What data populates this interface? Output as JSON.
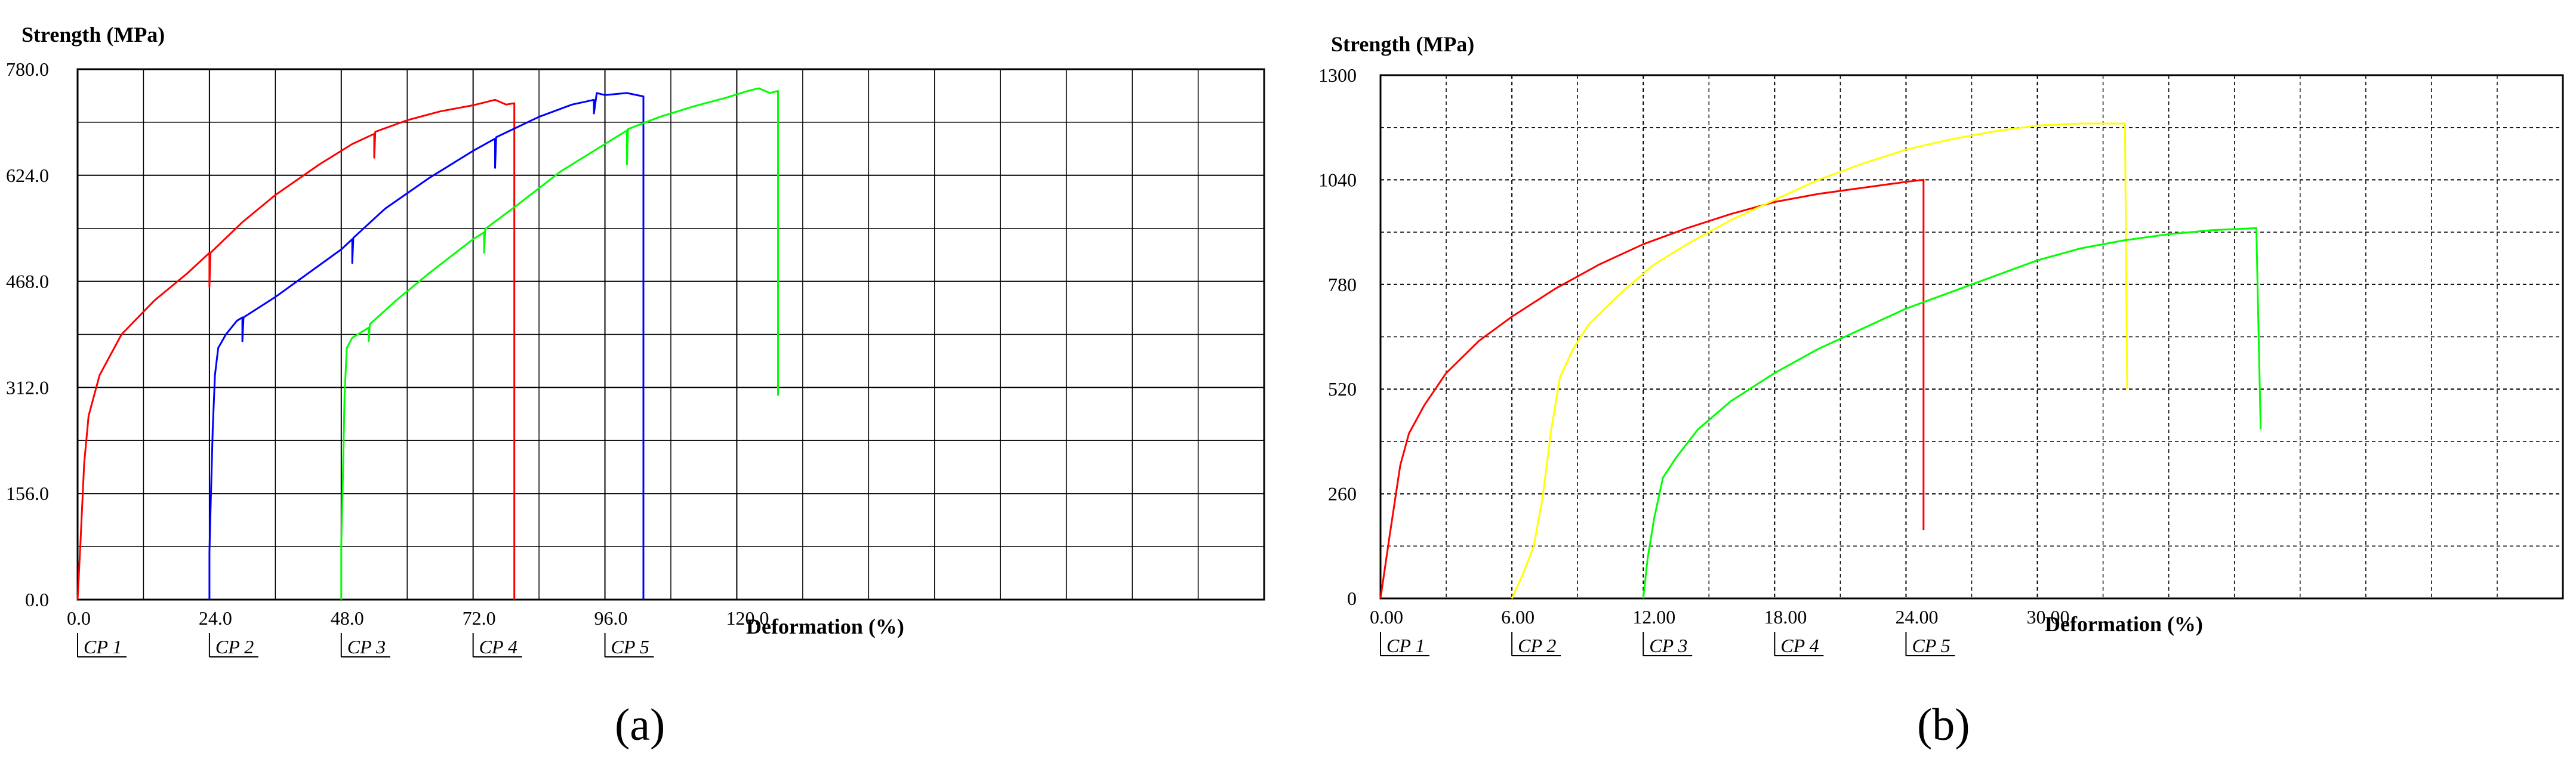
{
  "chart_data": [
    {
      "panel_label": "(a)",
      "type": "line",
      "ylabel": "Strength (MPa)",
      "xlabel": "Deformation (%)",
      "xlim": [
        0,
        216
      ],
      "ylim": [
        0,
        780
      ],
      "xticks": [
        "0.0",
        "24.0",
        "48.0",
        "72.0",
        "96.0",
        "120.0"
      ],
      "xtick_values": [
        0,
        24,
        48,
        72,
        96,
        120
      ],
      "yticks": [
        "0.0",
        "156.0",
        "312.0",
        "468.0",
        "624.0",
        "780.0"
      ],
      "ytick_values": [
        0,
        156,
        312,
        468,
        624,
        780
      ],
      "minor_grid_x": [
        12,
        36,
        60,
        84,
        108,
        132,
        144,
        156,
        168,
        180,
        192,
        204
      ],
      "minor_grid_y": [
        78,
        234,
        390,
        546,
        702
      ],
      "grid": true,
      "cp_labels": [
        {
          "text": "CP 1",
          "x": 0
        },
        {
          "text": "CP 2",
          "x": 24
        },
        {
          "text": "CP 3",
          "x": 48
        },
        {
          "text": "CP 4",
          "x": 72
        },
        {
          "text": "CP 5",
          "x": 96
        }
      ],
      "series": [
        {
          "color": "#ff0000",
          "points": [
            [
              0,
              0
            ],
            [
              0.5,
              80
            ],
            [
              1.2,
              200
            ],
            [
              2,
              270
            ],
            [
              4,
              330
            ],
            [
              8,
              390
            ],
            [
              14,
              440
            ],
            [
              20,
              480
            ],
            [
              24,
              510
            ],
            [
              24,
              460
            ],
            [
              24.2,
              510
            ],
            [
              30,
              555
            ],
            [
              36,
              595
            ],
            [
              44,
              640
            ],
            [
              50,
              670
            ],
            [
              54,
              685
            ],
            [
              54,
              650
            ],
            [
              54.2,
              688
            ],
            [
              60,
              705
            ],
            [
              66,
              718
            ],
            [
              72,
              727
            ],
            [
              76,
              735
            ],
            [
              78,
              728
            ],
            [
              79.5,
              730
            ],
            [
              79.5,
              650
            ],
            [
              79.5,
              0
            ]
          ]
        },
        {
          "color": "#0000ff",
          "points": [
            [
              24,
              0
            ],
            [
              24,
              70
            ],
            [
              24.3,
              160
            ],
            [
              24.6,
              250
            ],
            [
              25,
              330
            ],
            [
              25.6,
              370
            ],
            [
              27,
              390
            ],
            [
              29,
              410
            ],
            [
              30,
              415
            ],
            [
              30,
              380
            ],
            [
              30.2,
              415
            ],
            [
              36,
              445
            ],
            [
              42,
              480
            ],
            [
              48,
              515
            ],
            [
              50,
              530
            ],
            [
              50,
              495
            ],
            [
              50.2,
              532
            ],
            [
              56,
              575
            ],
            [
              64,
              620
            ],
            [
              72,
              660
            ],
            [
              76,
              678
            ],
            [
              76,
              635
            ],
            [
              76.2,
              680
            ],
            [
              84,
              710
            ],
            [
              90,
              728
            ],
            [
              94,
              735
            ],
            [
              94,
              715
            ],
            [
              94.5,
              745
            ],
            [
              96,
              742
            ],
            [
              100,
              745
            ],
            [
              103,
              740
            ],
            [
              103,
              0
            ]
          ]
        },
        {
          "color": "#00ff00",
          "points": [
            [
              48,
              0
            ],
            [
              48,
              80
            ],
            [
              48.3,
              180
            ],
            [
              48.6,
              300
            ],
            [
              49,
              370
            ],
            [
              50,
              385
            ],
            [
              53,
              400
            ],
            [
              53,
              380
            ],
            [
              53.2,
              405
            ],
            [
              58,
              440
            ],
            [
              64,
              480
            ],
            [
              72,
              530
            ],
            [
              74,
              540
            ],
            [
              74,
              510
            ],
            [
              74.2,
              545
            ],
            [
              80,
              580
            ],
            [
              88,
              630
            ],
            [
              96,
              670
            ],
            [
              100,
              690
            ],
            [
              100,
              640
            ],
            [
              100.2,
              692
            ],
            [
              106,
              710
            ],
            [
              112,
              725
            ],
            [
              118,
              738
            ],
            [
              122,
              748
            ],
            [
              124,
              752
            ],
            [
              126,
              745
            ],
            [
              127.5,
              748
            ],
            [
              127.5,
              300
            ]
          ]
        }
      ]
    },
    {
      "panel_label": "(b)",
      "type": "line",
      "ylabel": "Strength (MPa)",
      "xlabel": "Deformation (%)",
      "xlim": [
        0,
        54
      ],
      "ylim": [
        0,
        1300
      ],
      "xticks": [
        "0.00",
        "6.00",
        "12.00",
        "18.00",
        "24.00",
        "30.00"
      ],
      "xtick_values": [
        0,
        6,
        12,
        18,
        24,
        30
      ],
      "yticks": [
        "0",
        "260",
        "520",
        "780",
        "1040",
        "1300"
      ],
      "ytick_values": [
        0,
        260,
        520,
        780,
        1040,
        1300
      ],
      "minor_grid_x": [
        3,
        9,
        15,
        21,
        27,
        33,
        36,
        39,
        42,
        45,
        48,
        51
      ],
      "minor_grid_y": [
        130,
        390,
        650,
        910,
        1170
      ],
      "grid": true,
      "cp_labels": [
        {
          "text": "CP 1",
          "x": 0
        },
        {
          "text": "CP 2",
          "x": 6
        },
        {
          "text": "CP 3",
          "x": 12
        },
        {
          "text": "CP 4",
          "x": 18
        },
        {
          "text": "CP 5",
          "x": 24
        }
      ],
      "series": [
        {
          "color": "#ff0000",
          "points": [
            [
              0,
              0
            ],
            [
              0.4,
              150
            ],
            [
              0.9,
              330
            ],
            [
              1.3,
              410
            ],
            [
              2,
              480
            ],
            [
              3,
              560
            ],
            [
              4.5,
              640
            ],
            [
              6,
              700
            ],
            [
              8,
              770
            ],
            [
              10,
              830
            ],
            [
              12,
              880
            ],
            [
              14,
              920
            ],
            [
              16,
              955
            ],
            [
              18,
              985
            ],
            [
              20,
              1005
            ],
            [
              22,
              1020
            ],
            [
              24,
              1035
            ],
            [
              24.8,
              1040
            ],
            [
              24.8,
              170
            ]
          ]
        },
        {
          "color": "#ffff00",
          "points": [
            [
              6,
              0
            ],
            [
              6.5,
              60
            ],
            [
              7,
              130
            ],
            [
              7.4,
              250
            ],
            [
              7.8,
              420
            ],
            [
              8.2,
              550
            ],
            [
              8.8,
              620
            ],
            [
              9.5,
              680
            ],
            [
              11,
              760
            ],
            [
              12.5,
              830
            ],
            [
              14,
              880
            ],
            [
              16,
              940
            ],
            [
              18,
              990
            ],
            [
              20,
              1040
            ],
            [
              22,
              1080
            ],
            [
              24,
              1115
            ],
            [
              26,
              1140
            ],
            [
              28,
              1160
            ],
            [
              30,
              1175
            ],
            [
              32,
              1180
            ],
            [
              34,
              1180
            ],
            [
              34.1,
              520
            ]
          ]
        },
        {
          "color": "#00ff00",
          "points": [
            [
              12,
              0
            ],
            [
              12.2,
              100
            ],
            [
              12.5,
              200
            ],
            [
              12.9,
              300
            ],
            [
              13.5,
              350
            ],
            [
              14.5,
              420
            ],
            [
              16,
              490
            ],
            [
              18,
              560
            ],
            [
              20,
              620
            ],
            [
              22,
              670
            ],
            [
              24,
              720
            ],
            [
              26,
              760
            ],
            [
              28,
              800
            ],
            [
              30,
              840
            ],
            [
              32,
              870
            ],
            [
              34,
              890
            ],
            [
              36,
              905
            ],
            [
              38,
              915
            ],
            [
              40,
              920
            ],
            [
              40.2,
              420
            ]
          ]
        }
      ]
    }
  ]
}
